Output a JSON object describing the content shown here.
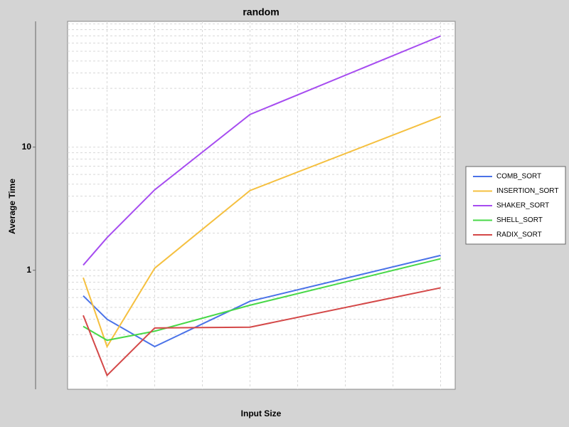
{
  "chart_data": {
    "type": "line",
    "title": "random",
    "xlabel": "Input Size",
    "ylabel": "Average Time",
    "x": [
      1000,
      2000,
      4000,
      8000,
      16000
    ],
    "xlim": [
      343,
      16612
    ],
    "xticks": [
      2000,
      4000,
      6000,
      8000,
      10000,
      12000,
      14000,
      16000
    ],
    "ylim": [
      0.108,
      105
    ],
    "log_y": true,
    "yticks": [
      1,
      10
    ],
    "yminor_ticks": [
      0.2,
      0.3,
      0.4,
      0.5,
      0.6,
      0.7,
      0.8,
      0.9,
      1,
      2,
      3,
      4,
      5,
      6,
      7,
      8,
      9,
      10,
      20,
      30,
      40,
      50,
      60,
      70,
      80,
      90,
      100
    ],
    "grid": true,
    "legend": "right",
    "series": [
      {
        "name": "COMB_SORT",
        "color": "#4a72e8",
        "values": [
          0.62,
          0.4,
          0.24,
          0.56,
          1.32
        ]
      },
      {
        "name": "INSERTION_SORT",
        "color": "#f5c040",
        "values": [
          0.87,
          0.24,
          1.04,
          4.44,
          17.7
        ]
      },
      {
        "name": "SHAKER_SORT",
        "color": "#a64cf0",
        "values": [
          1.1,
          1.84,
          4.5,
          18.4,
          79.8
        ]
      },
      {
        "name": "SHELL_SORT",
        "color": "#48d848",
        "values": [
          0.35,
          0.27,
          0.32,
          0.52,
          1.24
        ]
      },
      {
        "name": "RADIX_SORT",
        "color": "#d44848",
        "values": [
          0.43,
          0.14,
          0.34,
          0.345,
          0.72
        ]
      }
    ]
  }
}
